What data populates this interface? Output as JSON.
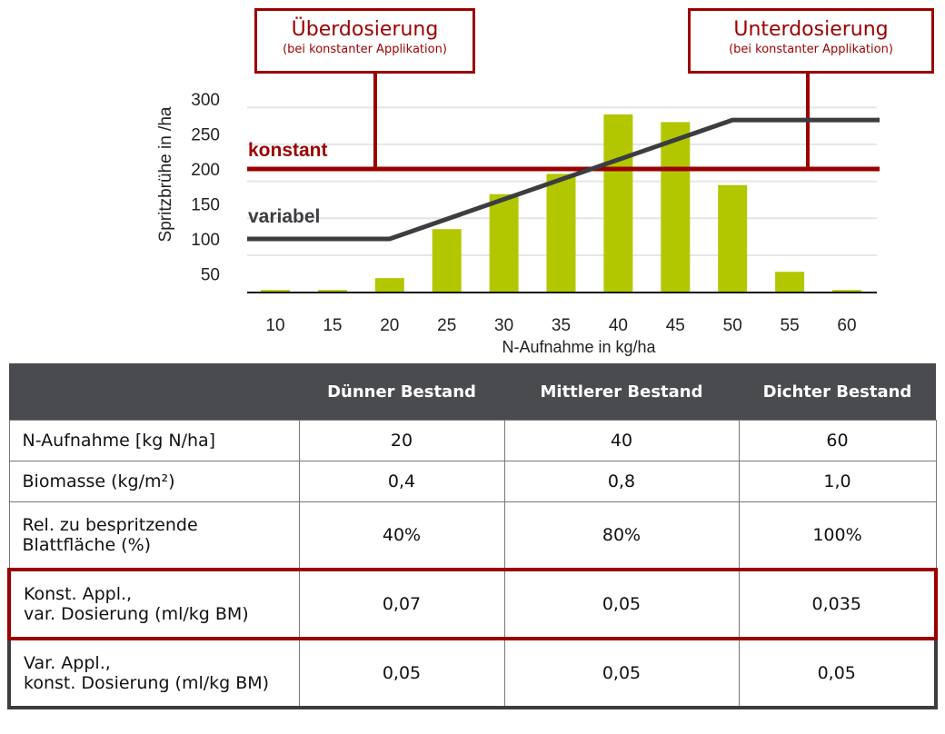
{
  "chart_data": {
    "type": "bar",
    "xlabel": "N-Aufnahme in kg/ha",
    "ylabel": "Spritzbrühe in /ha",
    "categories": [
      "10",
      "15",
      "20",
      "25",
      "30",
      "35",
      "40",
      "45",
      "50",
      "55",
      "60"
    ],
    "values": [
      27,
      27,
      44,
      114,
      164,
      193,
      278,
      267,
      177,
      53,
      27
    ],
    "yticks": [
      "50",
      "100",
      "150",
      "200",
      "250",
      "300"
    ],
    "ylim": [
      25,
      310
    ],
    "series": [
      {
        "name": "konstant",
        "x": [
          10,
          60
        ],
        "values": [
          200,
          200
        ],
        "color": "#9b0000"
      },
      {
        "name": "variabel",
        "x": [
          10,
          20,
          50,
          60
        ],
        "values": [
          100,
          100,
          270,
          270
        ],
        "color": "#3c3d40"
      }
    ],
    "bar_color": "#b2c700",
    "annotations": [
      {
        "title": "Überdosierung",
        "subtitle": "(bei konstanter Applikation)"
      },
      {
        "title": "Unterdosierung",
        "subtitle": "(bei konstanter Applikation)"
      }
    ]
  },
  "table": {
    "headers": [
      "",
      "Dünner Bestand",
      "Mittlerer Bestand",
      "Dichter Bestand"
    ],
    "rows": [
      {
        "label": [
          "N-Aufnahme [kg N/ha]",
          ""
        ],
        "values": [
          "20",
          "40",
          "60"
        ]
      },
      {
        "label": [
          "Biomasse (kg/m²)",
          ""
        ],
        "values": [
          "0,4",
          "0,8",
          "1,0"
        ]
      },
      {
        "label": [
          "Rel. zu bespritzende",
          "Blattfläche (%)"
        ],
        "values": [
          "40%",
          "80%",
          "100%"
        ]
      },
      {
        "label": [
          "Konst. Appl.,",
          "var. Dosierung (ml/kg BM)"
        ],
        "values": [
          "0,07",
          "0,05",
          "0,035"
        ]
      },
      {
        "label": [
          "Var. Appl.,",
          "konst. Dosierung (ml/kg BM)"
        ],
        "values": [
          "0,05",
          "0,05",
          "0,05"
        ]
      }
    ]
  }
}
